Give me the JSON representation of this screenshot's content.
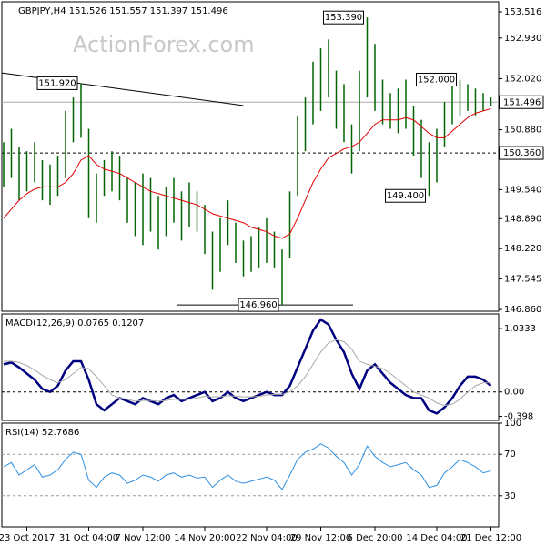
{
  "chart_data": [
    {
      "type": "hilo",
      "title": "GBPJPY,H4  151.526 151.557 151.397 151.496",
      "watermark": "ActionForex.com",
      "ylim": [
        146.82,
        153.74
      ],
      "yticks": [
        153.516,
        {
          "value": 152.93,
          "label": "152.930"
        },
        {
          "value": 152.02,
          "label": "152.020"
        },
        {
          "value": 150.88,
          "label": "150.880"
        },
        {
          "value": 149.54,
          "label": "149.540"
        },
        {
          "value": 148.89,
          "label": "148.890"
        },
        {
          "value": 148.22,
          "label": "148.220"
        },
        147.545,
        {
          "value": 146.86,
          "label": "146.860"
        }
      ],
      "color": "#006400",
      "ma_color": "#e00000",
      "high": [
        150.6,
        150.9,
        150.5,
        150.4,
        150.6,
        150.2,
        150.1,
        150.3,
        151.3,
        151.6,
        151.92,
        150.9,
        149.9,
        150.2,
        150.4,
        150.3,
        149.8,
        149.7,
        149.9,
        149.8,
        149.4,
        149.6,
        149.8,
        149.5,
        149.7,
        149.5,
        149.2,
        148.6,
        148.9,
        149.3,
        148.8,
        148.4,
        148.5,
        148.7,
        148.9,
        148.6,
        148.2,
        149.5,
        151.2,
        151.6,
        152.4,
        152.7,
        152.9,
        152.2,
        151.9,
        151.0,
        152.2,
        153.39,
        152.8,
        152.0,
        151.7,
        151.8,
        152.0,
        151.4,
        151.1,
        150.6,
        150.9,
        151.5,
        151.9,
        152.0,
        151.9,
        151.8,
        151.7,
        151.6
      ],
      "low": [
        149.6,
        149.8,
        149.3,
        149.5,
        149.7,
        149.3,
        149.2,
        149.4,
        149.8,
        150.6,
        150.7,
        148.9,
        148.8,
        149.4,
        149.5,
        149.3,
        148.8,
        148.5,
        148.3,
        148.6,
        148.2,
        148.5,
        148.8,
        148.4,
        148.7,
        148.6,
        148.1,
        147.3,
        147.7,
        148.3,
        147.9,
        147.6,
        147.7,
        147.8,
        147.9,
        147.8,
        146.96,
        148.0,
        149.4,
        150.4,
        151.0,
        151.3,
        151.6,
        150.9,
        150.6,
        149.9,
        150.4,
        151.6,
        151.3,
        151.0,
        150.9,
        150.8,
        150.9,
        150.3,
        149.8,
        149.4,
        149.7,
        150.5,
        151.0,
        151.2,
        151.3,
        151.2,
        151.3,
        151.4
      ],
      "ma": [
        148.9,
        149.1,
        149.3,
        149.45,
        149.55,
        149.6,
        149.6,
        149.6,
        149.7,
        149.9,
        150.2,
        150.3,
        150.1,
        150.0,
        149.95,
        149.9,
        149.8,
        149.7,
        149.6,
        149.5,
        149.45,
        149.4,
        149.35,
        149.3,
        149.25,
        149.2,
        149.1,
        149.0,
        148.95,
        148.9,
        148.85,
        148.8,
        148.7,
        148.65,
        148.6,
        148.5,
        148.45,
        148.55,
        148.9,
        149.3,
        149.7,
        150.0,
        150.25,
        150.35,
        150.45,
        150.5,
        150.6,
        150.8,
        151.0,
        151.1,
        151.1,
        151.1,
        151.15,
        151.1,
        150.95,
        150.8,
        150.7,
        150.7,
        150.85,
        151.0,
        151.15,
        151.25,
        151.3,
        151.35
      ],
      "trendline": [
        152.15,
        151.42
      ],
      "support": 146.96,
      "annotations": [
        {
          "value": 151.92,
          "label": "151.920"
        },
        {
          "value": 153.39,
          "label": "153.390"
        },
        {
          "value": 152.0,
          "label": "152.000"
        },
        {
          "value": 149.4,
          "label": "149.400"
        },
        {
          "value": 146.96,
          "label": "146.960"
        }
      ],
      "price_tags": [
        {
          "value": 151.496,
          "line": "solid"
        },
        {
          "value": 150.36,
          "label": "150.360",
          "line": "dashed"
        }
      ]
    },
    {
      "type": "line",
      "title": "MACD(12,26,9) 0.0765 0.1207",
      "ylim": [
        -0.464,
        1.272
      ],
      "yticks": [
        1.0333,
        {
          "value": 0,
          "label": "0.00"
        },
        -0.398
      ],
      "series": [
        {
          "color": "#000080",
          "width": 2.5,
          "values": [
            0.45,
            0.48,
            0.4,
            0.3,
            0.2,
            0.05,
            0.0,
            0.1,
            0.35,
            0.5,
            0.5,
            0.2,
            -0.2,
            -0.3,
            -0.2,
            -0.1,
            -0.15,
            -0.2,
            -0.1,
            -0.15,
            -0.2,
            -0.1,
            -0.05,
            -0.15,
            -0.1,
            -0.05,
            0.0,
            -0.15,
            -0.1,
            0.0,
            -0.1,
            -0.15,
            -0.1,
            -0.05,
            0.0,
            -0.05,
            -0.05,
            0.1,
            0.4,
            0.7,
            1.0,
            1.18,
            1.1,
            0.85,
            0.65,
            0.3,
            0.05,
            0.35,
            0.45,
            0.3,
            0.15,
            0.05,
            -0.05,
            -0.1,
            -0.1,
            -0.3,
            -0.35,
            -0.25,
            -0.1,
            0.1,
            0.25,
            0.25,
            0.2,
            0.1
          ]
        },
        {
          "color": "#a8a8a8",
          "width": 1,
          "values": [
            0.5,
            0.5,
            0.48,
            0.43,
            0.36,
            0.27,
            0.2,
            0.15,
            0.2,
            0.3,
            0.4,
            0.38,
            0.25,
            0.1,
            -0.05,
            -0.1,
            -0.12,
            -0.15,
            -0.14,
            -0.14,
            -0.15,
            -0.14,
            -0.12,
            -0.12,
            -0.12,
            -0.1,
            -0.07,
            -0.08,
            -0.08,
            -0.06,
            -0.07,
            -0.08,
            -0.08,
            -0.07,
            -0.05,
            -0.04,
            -0.04,
            0.0,
            0.1,
            0.25,
            0.45,
            0.65,
            0.8,
            0.85,
            0.82,
            0.7,
            0.5,
            0.45,
            0.42,
            0.38,
            0.3,
            0.2,
            0.1,
            0.0,
            -0.05,
            -0.1,
            -0.18,
            -0.22,
            -0.2,
            -0.12,
            0.0,
            0.1,
            0.15,
            0.15
          ]
        }
      ],
      "level_lines": [
        0
      ]
    },
    {
      "type": "line",
      "title": "RSI(14) 52.7686",
      "ylim": [
        0,
        100
      ],
      "yticks": [
        100,
        70,
        30
      ],
      "series": [
        {
          "color": "#2f8fe0",
          "width": 1,
          "values": [
            58,
            62,
            50,
            55,
            60,
            48,
            50,
            55,
            65,
            72,
            70,
            45,
            38,
            48,
            52,
            50,
            42,
            45,
            50,
            48,
            44,
            50,
            52,
            48,
            50,
            47,
            48,
            38,
            45,
            50,
            44,
            42,
            44,
            46,
            48,
            45,
            36,
            50,
            65,
            72,
            75,
            80,
            76,
            68,
            62,
            50,
            60,
            78,
            68,
            62,
            58,
            60,
            62,
            55,
            50,
            38,
            40,
            52,
            58,
            65,
            62,
            58,
            52,
            54
          ]
        }
      ],
      "level_lines": [
        70,
        30
      ],
      "categories": [
        null,
        null,
        null,
        "23 Oct 2017",
        null,
        null,
        null,
        null,
        null,
        null,
        null,
        "31 Oct 04:00",
        null,
        null,
        null,
        null,
        null,
        null,
        "7 Nov 12:00",
        null,
        null,
        null,
        null,
        null,
        null,
        null,
        "14 Nov 20:00",
        null,
        null,
        null,
        null,
        null,
        null,
        null,
        "22 Nov 04:00",
        null,
        null,
        null,
        null,
        null,
        null,
        "29 Nov 12:00",
        null,
        null,
        null,
        null,
        null,
        null,
        "6 Dec 20:00",
        null,
        null,
        null,
        null,
        null,
        null,
        null,
        "14 Dec 04:00",
        null,
        null,
        null,
        null,
        null,
        null,
        "21 Dec 12:00"
      ]
    }
  ]
}
